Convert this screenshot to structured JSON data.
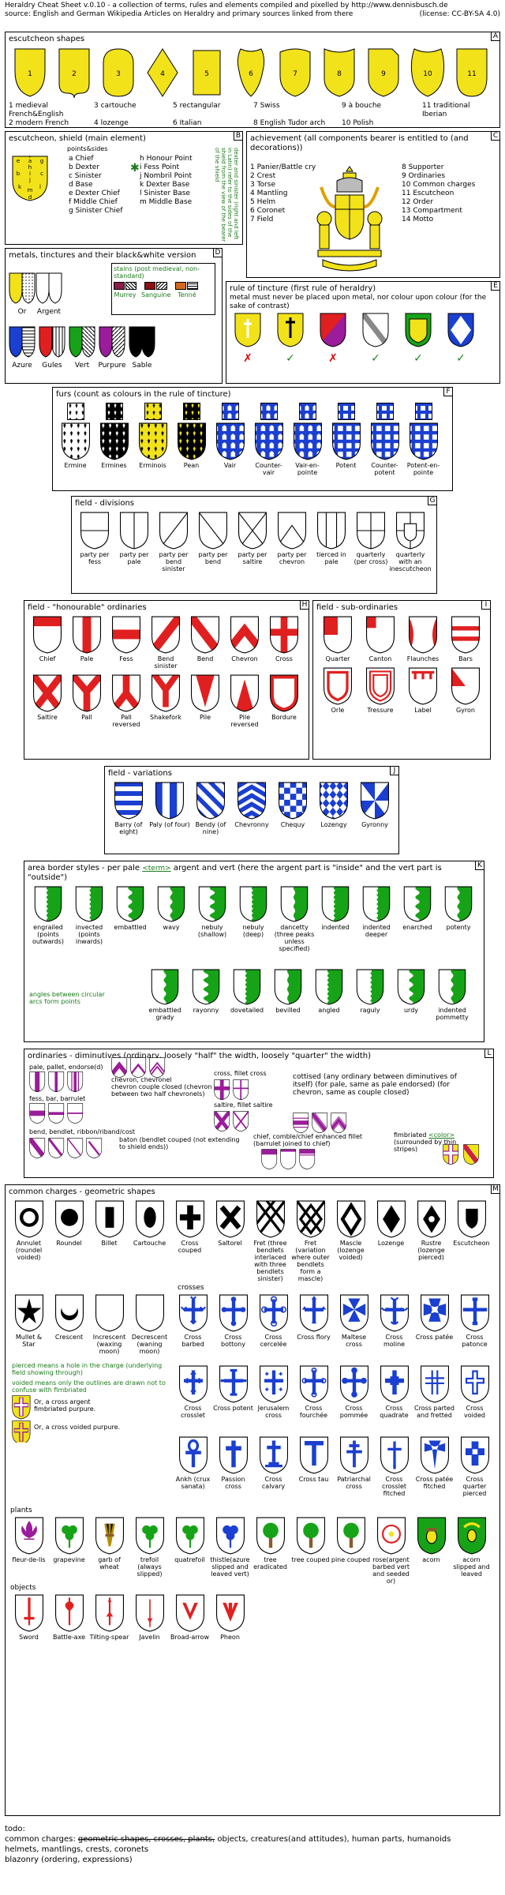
{
  "header": {
    "title": "Heraldry Cheat Sheet  v.0.10  - a collection of terms, rules and elements compiled and pixelled by http://www.dennisbusch.de",
    "source": "source: English and German Wikipedia Articles on Heraldry and primary sources linked from there",
    "license": "(license: CC-BY-SA 4.0)"
  },
  "colors": {
    "or": "#f2e21a",
    "argent": "#ffffff",
    "azure": "#1a3fd1",
    "gules": "#e02020",
    "vert": "#17a317",
    "purpure": "#9b1d9b",
    "sable": "#000000"
  },
  "a": {
    "letter": "A",
    "title": "escutcheon shapes",
    "nums": [
      "1",
      "2",
      "3",
      "4",
      "5",
      "6",
      "7",
      "8",
      "9",
      "10",
      "11"
    ],
    "legend": [
      "1 medieval French&English",
      "3 cartouche",
      "5 rectangular",
      "7 Swiss",
      "9 à bouche",
      "11 traditional Iberian",
      "2 modern French",
      "4 lozenge",
      "6 Italian",
      "8 English Tudor arch",
      "10 Polish",
      ""
    ]
  },
  "b": {
    "letter": "B",
    "title": "escutcheon, shield (main element)",
    "sub": "points&sides",
    "col1": [
      "a Chief",
      "b Dexter",
      "c Sinister",
      "d Base",
      "e Dexter Chief",
      "f Middle Chief",
      "g Sinister Chief"
    ],
    "col2": [
      "h Honour Point",
      "i Fess Point",
      "j Nombril Point",
      "k Dexter Base",
      "l Sinister Base",
      "m Middle Base"
    ],
    "note": "dexter and sinister (right and left in Latin) refer to the sides of the shield from the view of the bearer of the shield"
  },
  "c": {
    "letter": "C",
    "title": "achievement (all components bearer is entitled to (and decorations))",
    "col1": [
      "1 Panier/Battle cry",
      "2 Crest",
      "3 Torse",
      "4 Mantling",
      "5 Helm",
      "6 Coronet",
      "7 Field"
    ],
    "col2": [
      "8 Supporter",
      "9 Ordinaries",
      "10 Common charges",
      "11 Escutcheon",
      "12 Order",
      "13 Compartment",
      "14 Motto"
    ]
  },
  "d": {
    "letter": "D",
    "title": "metals, tinctures and their black&white version",
    "stains_title": "stains (post medieval, non-standard)",
    "stains": [
      "Murrey",
      "Sanguine",
      "Tenné"
    ],
    "items": [
      "Or",
      "Argent",
      "Azure",
      "Gules",
      "Vert",
      "Purpure",
      "Sable"
    ]
  },
  "e": {
    "letter": "E",
    "title": "rule of tincture (first rule of heraldry)",
    "text": "metal must never be placed upon metal, nor colour upon colour (for the sake of contrast)",
    "marks": [
      "✗",
      "✓",
      "✗",
      "✓",
      "✓",
      "✓"
    ]
  },
  "f": {
    "letter": "F",
    "title": "furs (count as colours in the rule of tincture)",
    "items": [
      "Ermine",
      "Ermines",
      "Erminois",
      "Pean",
      "Vair",
      "Counter-vair",
      "Vair-en-pointe",
      "Potent",
      "Counter-potent",
      "Potent-en-pointe"
    ]
  },
  "g": {
    "letter": "G",
    "title": "field - divisions",
    "items": [
      "party per fess",
      "party per pale",
      "party per bend sinister",
      "party per bend",
      "party per saltire",
      "party per chevron",
      "tierced in pale",
      "quarterly (per cross)",
      "quarterly with an inescutcheon"
    ]
  },
  "h": {
    "letter": "H",
    "title": "field - \"honourable\" ordinaries",
    "row1": [
      "Chief",
      "Pale",
      "Fess",
      "Bend sinister",
      "Bend",
      "Chevron",
      "Cross"
    ],
    "row2": [
      "Saltire",
      "Pall",
      "Pall reversed",
      "Shakefork",
      "Pile",
      "Pile reversed",
      "Bordure"
    ]
  },
  "i": {
    "letter": "I",
    "title": "field - sub-ordinaries",
    "row1": [
      "Quarter",
      "Canton",
      "Flaunches",
      "Bars"
    ],
    "row2": [
      "Orle",
      "Tressure",
      "Label",
      "Gyron"
    ]
  },
  "j": {
    "letter": "J",
    "title": "field - variations",
    "items": [
      "Barry (of eight)",
      "Paly (of four)",
      "Bendy (of nine)",
      "Chevronny",
      "Chequy",
      "Lozengy",
      "Gyronny"
    ]
  },
  "k": {
    "letter": "K",
    "title": "area border styles - per pale",
    "term": "<term>",
    "title_rest": "argent and vert (here the argent part is \"inside\" and the vert part is \"outside\")",
    "row1": [
      "engrailed (points outwards)",
      "invected (points inwards)",
      "embattled",
      "wavy",
      "nebuly (shallow)",
      "nebuly (deep)",
      "dancetty (three peaks unless specified)",
      "indented",
      "indented deeper",
      "enarched",
      "potenty"
    ],
    "row2": [
      "embattled grady",
      "rayonny",
      "dovetailed",
      "bevilled",
      "angled",
      "raguly",
      "urdy",
      "indented pommetty"
    ],
    "note": "angles between circular arcs form points"
  },
  "l": {
    "letter": "L",
    "title": "ordinaries - diminutives (ordinary, loosely \"half\" the width, loosely \"quarter\" the width)",
    "pale": "pale, pallet, endorse(d)",
    "chevron": "chevron, chevronel",
    "chevron_note": "chevron couple closed (chevron between two half chevronels)",
    "cross": "cross, fillet cross",
    "saltire": "saltire, fillet saltire",
    "fess": "fess, bar, barrulet",
    "bend": "bend, bendlet, ribbon/riband/cost",
    "baton": "baton (bendlet couped (not extending to shield ends))",
    "cottised": "cottised (any ordinary between diminutives of itself) (for pale, same as pale endorsed) (for chevron, same as couple closed)",
    "chief": "chief, comble/chief enhanced fillet (barrulet joined to chief)",
    "fimbriated": "fimbriated",
    "fim_color": "<color>",
    "fim_note": "(surrounded by thin stripes)"
  },
  "m": {
    "letter": "M",
    "title": "common charges - geometric shapes",
    "geo": [
      "Annulet (roundel voided)",
      "Roundel",
      "Billet",
      "Cartouche",
      "Cross couped",
      "Saltorel",
      "Fret (three bendlets interlaced with three bendlets sinister)",
      "Fret (variation where outer bendlets form a mascle)",
      "Mascle (lozenge voided)",
      "Lozenge",
      "Rustre (lozenge pierced)",
      "Escutcheon"
    ],
    "crosses_title": "crosses",
    "geo2": [
      "Mullet & Star",
      "Crescent",
      "Increscent (waxing moon)",
      "Decrescent (waning moon)"
    ],
    "cross1": [
      "Cross barbed",
      "Cross bottony",
      "Cross cercelée",
      "Cross flory",
      "Maltese cross",
      "Cross moline",
      "Cross patée",
      "Cross patonce"
    ],
    "pierced_note": "pierced means a hole in the charge (underlying field showing through)",
    "voided_note": "voided means only the outlines are drawn not to confuse with fimbriated",
    "cross2": [
      "Cross crosslet",
      "Cross potent",
      "Jerusalem cross",
      "Cross fourchée",
      "Cross pommée",
      "Cross quadrate",
      "Cross parted and fretted",
      "Cross voided"
    ],
    "or_cross1": "Or, a cross argent fimbriated purpure.",
    "or_cross2": "Or, a cross voided purpure.",
    "cross3": [
      "Ankh (crux sanata)",
      "Passion cross",
      "Cross calvary",
      "Cross tau",
      "Patriarchal cross",
      "Cross crosslet fitched",
      "Cross patée fitched",
      "Cross quarter pierced"
    ],
    "plants_title": "plants",
    "plants": [
      "fleur-de-lis",
      "grapevine",
      "garb of wheat",
      "trefoil (always slipped)",
      "quatrefoil",
      "thistle(azure slipped and leaved vert)",
      "tree eradicated",
      "tree couped",
      "pine couped",
      "rose(argent barbed vert and seeded or)",
      "acorn",
      "acorn slipped and leaved"
    ],
    "objects_title": "objects",
    "objects": [
      "Sword",
      "Battle-axe",
      "Tilting-spear",
      "Javelin",
      "Broad-arrow",
      "Pheon"
    ]
  },
  "todo": {
    "title": "todo:",
    "line1_prefix": "common charges:",
    "line1_done": "geometric shapes, crosses, plants,",
    "line1_rest": "objects, creatures(and attitudes), human parts, humanoids",
    "line2": "helmets, mantlings, crests, coronets",
    "line3": "blazonry (ordering, expressions)"
  }
}
